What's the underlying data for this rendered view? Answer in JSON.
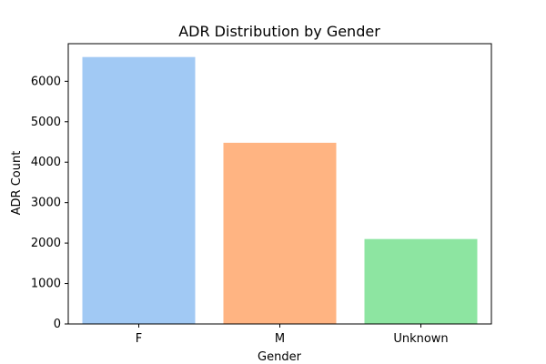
{
  "chart_data": {
    "type": "bar",
    "title": "ADR Distribution by Gender",
    "xlabel": "Gender",
    "ylabel": "ADR Count",
    "categories": [
      "F",
      "M",
      "Unknown"
    ],
    "values": [
      6600,
      4480,
      2100
    ],
    "ylim": [
      0,
      6930
    ],
    "yticks": [
      0,
      1000,
      2000,
      3000,
      4000,
      5000,
      6000
    ],
    "ytick_labels": [
      "0",
      "1000",
      "2000",
      "3000",
      "4000",
      "5000",
      "6000"
    ],
    "colors": [
      "#a1c9f4",
      "#ffb482",
      "#8de5a1"
    ],
    "grid": false,
    "legend": "none"
  }
}
